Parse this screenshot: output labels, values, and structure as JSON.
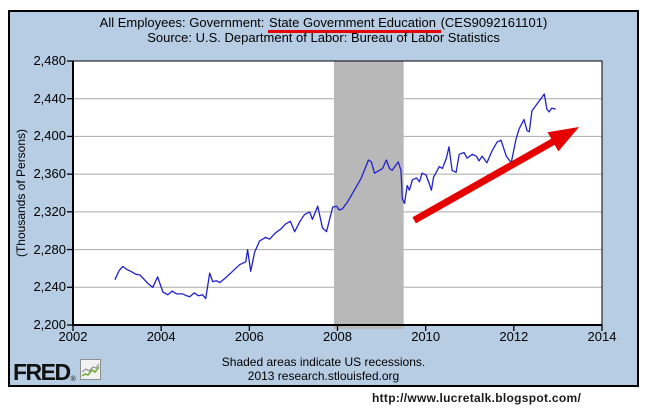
{
  "header": {
    "title_prefix": "All Employees: Government: ",
    "title_underlined": "State Government Education",
    "title_suffix": " (CES9092161101)",
    "source": "Source: U.S. Department of Labor: Bureau of Labor Statistics"
  },
  "footer": {
    "line1": "Shaded areas indicate US recessions.",
    "line2": "2013 research.stlouisfed.org",
    "logo_text": "FRED",
    "logo_reg": "®",
    "logo_icon": "mini-line-chart-icon"
  },
  "caption": {
    "url": "http://www.lucretalk.blogspot.com/"
  },
  "colors": {
    "box_background": "#b7cde4",
    "plot_background": "#ffffff",
    "gridline": "#a8a8a8",
    "axis": "#000000",
    "recession_band": "#b8b8b8",
    "series_line": "#2121cc",
    "annotation_red": "#e60000"
  },
  "chart_data": {
    "type": "line",
    "title": "All Employees: Government: State Government Education (CES9092161101)",
    "subtitle": "Source: U.S. Department of Labor: Bureau of Labor Statistics",
    "xlabel": "",
    "ylabel": "(Thousands of Persons)",
    "xlim": [
      2002,
      2014
    ],
    "ylim": [
      2200,
      2480
    ],
    "grid": true,
    "x_tick_labels": [
      "2002",
      "2004",
      "2006",
      "2008",
      "2010",
      "2012",
      "2014"
    ],
    "x_tick_values": [
      2002,
      2004,
      2006,
      2008,
      2010,
      2012,
      2014
    ],
    "y_tick_labels": [
      "2,480",
      "2,440",
      "2,400",
      "2,360",
      "2,320",
      "2,280",
      "2,240",
      "2,200"
    ],
    "y_tick_values": [
      2480,
      2440,
      2400,
      2360,
      2320,
      2280,
      2240,
      2200
    ],
    "recession_band": [
      2007.92,
      2009.5
    ],
    "series": [
      {
        "name": "All Employees: State Government Education (CES9092161101)",
        "x": [
          2002.95,
          2003.05,
          2003.13,
          2003.22,
          2003.31,
          2003.42,
          2003.52,
          2003.62,
          2003.7,
          2003.81,
          2003.92,
          2004.04,
          2004.15,
          2004.25,
          2004.35,
          2004.49,
          2004.58,
          2004.65,
          2004.75,
          2004.85,
          2004.94,
          2005.01,
          2005.1,
          2005.17,
          2005.25,
          2005.33,
          2005.46,
          2005.62,
          2005.78,
          2005.92,
          2005.96,
          2006.03,
          2006.12,
          2006.23,
          2006.37,
          2006.46,
          2006.6,
          2006.72,
          2006.82,
          2006.93,
          2007.03,
          2007.15,
          2007.25,
          2007.37,
          2007.43,
          2007.55,
          2007.66,
          2007.75,
          2007.89,
          2007.98,
          2008.04,
          2008.11,
          2008.22,
          2008.32,
          2008.43,
          2008.54,
          2008.66,
          2008.7,
          2008.77,
          2008.84,
          2008.95,
          2009.02,
          2009.11,
          2009.18,
          2009.24,
          2009.33,
          2009.38,
          2009.44,
          2009.47,
          2009.52,
          2009.58,
          2009.63,
          2009.7,
          2009.79,
          2009.86,
          2009.92,
          2010.01,
          2010.08,
          2010.13,
          2010.18,
          2010.24,
          2010.31,
          2010.38,
          2010.47,
          2010.53,
          2010.6,
          2010.69,
          2010.76,
          2010.87,
          2010.94,
          2011.06,
          2011.15,
          2011.21,
          2011.28,
          2011.39,
          2011.51,
          2011.62,
          2011.71,
          2011.83,
          2011.94,
          2012.05,
          2012.12,
          2012.23,
          2012.3,
          2012.35,
          2012.41,
          2012.55,
          2012.69,
          2012.75,
          2012.8,
          2012.86,
          2012.95
        ],
        "y": [
          2248,
          2258,
          2262,
          2259,
          2257,
          2254,
          2253,
          2248,
          2244,
          2240,
          2251,
          2235,
          2232,
          2236,
          2233,
          2233,
          2231,
          2230,
          2234,
          2231,
          2232,
          2228,
          2255,
          2246,
          2247,
          2245,
          2250,
          2257,
          2264,
          2267,
          2280,
          2257,
          2277,
          2289,
          2293,
          2291,
          2298,
          2302,
          2307,
          2310,
          2299,
          2310,
          2317,
          2320,
          2312,
          2326,
          2303,
          2299,
          2325,
          2326,
          2322,
          2323,
          2330,
          2338,
          2347,
          2356,
          2370,
          2375,
          2373,
          2361,
          2364,
          2366,
          2375,
          2366,
          2364,
          2370,
          2373,
          2364,
          2334,
          2329,
          2348,
          2343,
          2354,
          2356,
          2352,
          2361,
          2359,
          2350,
          2343,
          2357,
          2362,
          2368,
          2366,
          2377,
          2389,
          2364,
          2362,
          2381,
          2383,
          2377,
          2381,
          2379,
          2374,
          2379,
          2372,
          2385,
          2394,
          2396,
          2379,
          2372,
          2397,
          2408,
          2418,
          2406,
          2405,
          2427,
          2436,
          2445,
          2429,
          2426,
          2430,
          2429
        ]
      }
    ],
    "annotation_arrow": {
      "from": [
        2009.74,
        2311
      ],
      "to": [
        2013.48,
        2410
      ]
    }
  }
}
